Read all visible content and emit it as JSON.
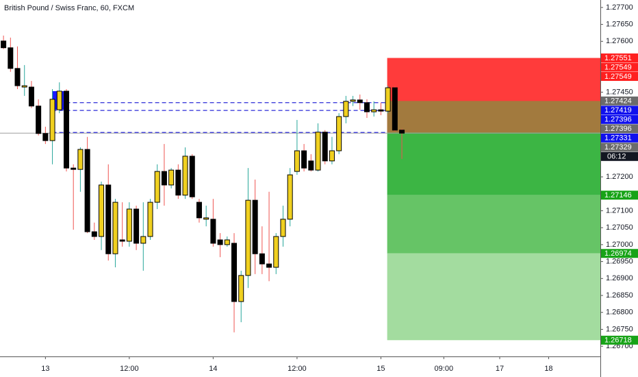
{
  "chart_data": {
    "type": "candlestick",
    "title": "British Pound / Swiss Franc, 60, FXCM",
    "x": [
      -6,
      -5,
      -4,
      -3,
      -2,
      -1,
      0,
      1,
      2,
      3,
      4,
      5,
      6,
      7,
      8,
      9,
      10,
      11,
      12,
      13,
      14,
      15,
      16,
      17,
      18,
      19,
      20,
      21,
      22,
      23,
      24,
      25,
      26,
      27,
      28,
      29,
      30,
      31,
      32,
      33,
      34,
      35,
      36,
      37,
      38,
      39,
      40,
      41,
      42,
      43,
      44,
      45,
      46,
      47,
      48,
      49,
      50,
      51
    ],
    "open": [
      1.27601,
      1.27581,
      1.2752,
      1.27465,
      1.27465,
      1.27409,
      1.27328,
      1.27307,
      1.27398,
      1.27453,
      1.27226,
      1.27222,
      1.27281,
      1.27038,
      1.27024,
      1.27176,
      1.26973,
      1.27014,
      1.2701,
      1.27105,
      1.27004,
      1.27024,
      1.27125,
      1.27216,
      1.27176,
      1.2722,
      1.27146,
      1.27261,
      1.27125,
      1.27075,
      1.27075,
      1.27014,
      1.27,
      1.27004,
      1.26832,
      1.26909,
      1.27131,
      1.26973,
      1.26943,
      1.26933,
      1.27024,
      1.27075,
      1.27216,
      1.27277,
      1.27247,
      1.2722,
      1.27332,
      1.27247,
      1.27277,
      1.27378,
      1.27423,
      1.27427,
      1.27419,
      1.27392,
      1.27398,
      1.27394,
      1.27463,
      1.27338
    ],
    "high": [
      1.27617,
      1.27611,
      1.27585,
      1.2753,
      1.27483,
      1.27429,
      1.27348,
      1.27459,
      1.27479,
      1.27459,
      1.27237,
      1.27287,
      1.27318,
      1.27065,
      1.27186,
      1.27237,
      1.27135,
      1.27125,
      1.27125,
      1.27115,
      1.27125,
      1.27135,
      1.27237,
      1.27297,
      1.27226,
      1.27237,
      1.27287,
      1.27267,
      1.27135,
      1.27115,
      1.27135,
      1.27034,
      1.27024,
      1.27034,
      1.26923,
      1.27226,
      1.27192,
      1.27054,
      1.27156,
      1.27034,
      1.27115,
      1.27226,
      1.27368,
      1.27297,
      1.27267,
      1.27358,
      1.27338,
      1.27318,
      1.27388,
      1.27439,
      1.27439,
      1.27443,
      1.27429,
      1.27423,
      1.27419,
      1.27469,
      1.27469,
      1.27342
    ],
    "low": [
      1.27577,
      1.2751,
      1.27459,
      1.27439,
      1.27403,
      1.27322,
      1.27297,
      1.27237,
      1.27388,
      1.27216,
      1.27044,
      1.27156,
      1.27034,
      1.27014,
      1.26984,
      1.26953,
      1.26933,
      1.26994,
      1.26994,
      1.26984,
      1.26923,
      1.27014,
      1.27105,
      1.27115,
      1.27166,
      1.27135,
      1.27135,
      1.27135,
      1.27065,
      1.27054,
      1.26994,
      1.26963,
      1.26994,
      1.26741,
      1.26771,
      1.26872,
      1.26913,
      1.26913,
      1.26892,
      1.26913,
      1.26994,
      1.27054,
      1.27206,
      1.27216,
      1.27216,
      1.27216,
      1.27237,
      1.27237,
      1.27267,
      1.27358,
      1.27409,
      1.27398,
      1.27374,
      1.27378,
      1.27382,
      1.27388,
      1.27334,
      1.27253
    ],
    "close": [
      1.27581,
      1.2752,
      1.27469,
      1.27469,
      1.27409,
      1.27328,
      1.27307,
      1.27429,
      1.27453,
      1.27226,
      1.27222,
      1.27281,
      1.27038,
      1.27024,
      1.27176,
      1.26973,
      1.27125,
      1.2701,
      1.27105,
      1.27004,
      1.27024,
      1.27125,
      1.27216,
      1.27176,
      1.2722,
      1.27146,
      1.27261,
      1.27141,
      1.27079,
      1.27079,
      1.27004,
      1.27,
      1.27014,
      1.26832,
      1.26909,
      1.27131,
      1.26973,
      1.26943,
      1.26933,
      1.27024,
      1.27075,
      1.27206,
      1.27277,
      1.27226,
      1.2722,
      1.27332,
      1.27247,
      1.27277,
      1.27378,
      1.27423,
      1.27427,
      1.27419,
      1.27392,
      1.27398,
      1.27394,
      1.27463,
      1.27338,
      1.27329
    ],
    "up_color": "#f0d020",
    "down_color": "#000000",
    "wick_up_color": "#26a69a",
    "wick_down_color": "#ef5350",
    "xlim": [
      -6.5,
      79.4
    ],
    "xticks": [
      {
        "value": 0,
        "label": "13"
      },
      {
        "value": 12,
        "label": "12:00"
      },
      {
        "value": 24,
        "label": "14"
      },
      {
        "value": 36,
        "label": "12:00"
      },
      {
        "value": 48,
        "label": "15"
      },
      {
        "value": 57,
        "label": "09:00"
      },
      {
        "value": 65,
        "label": "17"
      },
      {
        "value": 72,
        "label": "18"
      }
    ],
    "ylim": [
      1.2667,
      1.27722
    ],
    "yticks": [
      {
        "value": 1.277,
        "label": "1.27700"
      },
      {
        "value": 1.2765,
        "label": "1.27650"
      },
      {
        "value": 1.276,
        "label": "1.27600"
      },
      {
        "value": 1.2745,
        "label": "1.27450"
      },
      {
        "value": 1.272,
        "label": "1.27200"
      },
      {
        "value": 1.271,
        "label": "1.27100"
      },
      {
        "value": 1.2705,
        "label": "1.27050"
      },
      {
        "value": 1.27,
        "label": "1.27000"
      },
      {
        "value": 1.2695,
        "label": "1.26950"
      },
      {
        "value": 1.269,
        "label": "1.26900"
      },
      {
        "value": 1.2685,
        "label": "1.26850"
      },
      {
        "value": 1.268,
        "label": "1.26800"
      },
      {
        "value": 1.2675,
        "label": "1.26750"
      },
      {
        "value": 1.267,
        "label": "1.26700"
      }
    ],
    "grid": false,
    "highlight": {
      "x": [
        0.95,
        2.9
      ],
      "range": [
        1.27398,
        1.27453
      ],
      "color": "#1a1aff"
    },
    "dashed_levels": {
      "start": 1,
      "values": [
        1.27419,
        1.27396,
        1.27331
      ],
      "color": "#2a2ad8"
    },
    "current_price": 1.27329,
    "position": {
      "start": 48.9,
      "stop": 1.27551,
      "entry": 1.27331,
      "targets": [
        1.27146,
        1.26974,
        1.26718
      ],
      "stop_color": "#ff3b3b",
      "target_colors": [
        "#3cb544",
        "#66c466",
        "#a3dc9f"
      ],
      "overlap": [
        1.27424,
        1.27331
      ],
      "overlap_color": "#a27a3e"
    },
    "price_labels": [
      {
        "value": 1.27551,
        "label": "1.27551",
        "color": "#ff1f1f"
      },
      {
        "value": 1.27549,
        "label": "1.27549",
        "color": "#ff1f1f"
      },
      {
        "value": 1.27549,
        "label": "1.27549",
        "color": "#ff1f1f"
      },
      {
        "value": 1.27424,
        "label": "1.27424",
        "color": "#6b6b6b"
      },
      {
        "value": 1.27419,
        "label": "1.27419",
        "color": "#1010ee"
      },
      {
        "value": 1.27396,
        "label": "1.27396",
        "color": "#1010ee"
      },
      {
        "value": 1.27396,
        "label": "1.27396",
        "color": "#6b6b6b"
      },
      {
        "value": 1.27331,
        "label": "1.27331",
        "color": "#1010ee"
      },
      {
        "value": 1.27329,
        "label": "1.27329",
        "color": "#6b6b6b"
      },
      {
        "value": 1.27146,
        "label": "1.27146",
        "color": "#17a317"
      },
      {
        "value": 1.26974,
        "label": "1.26974",
        "color": "#17a317"
      },
      {
        "value": 1.26718,
        "label": "1.26718",
        "color": "#17a317"
      }
    ],
    "countdown": "06:12"
  }
}
